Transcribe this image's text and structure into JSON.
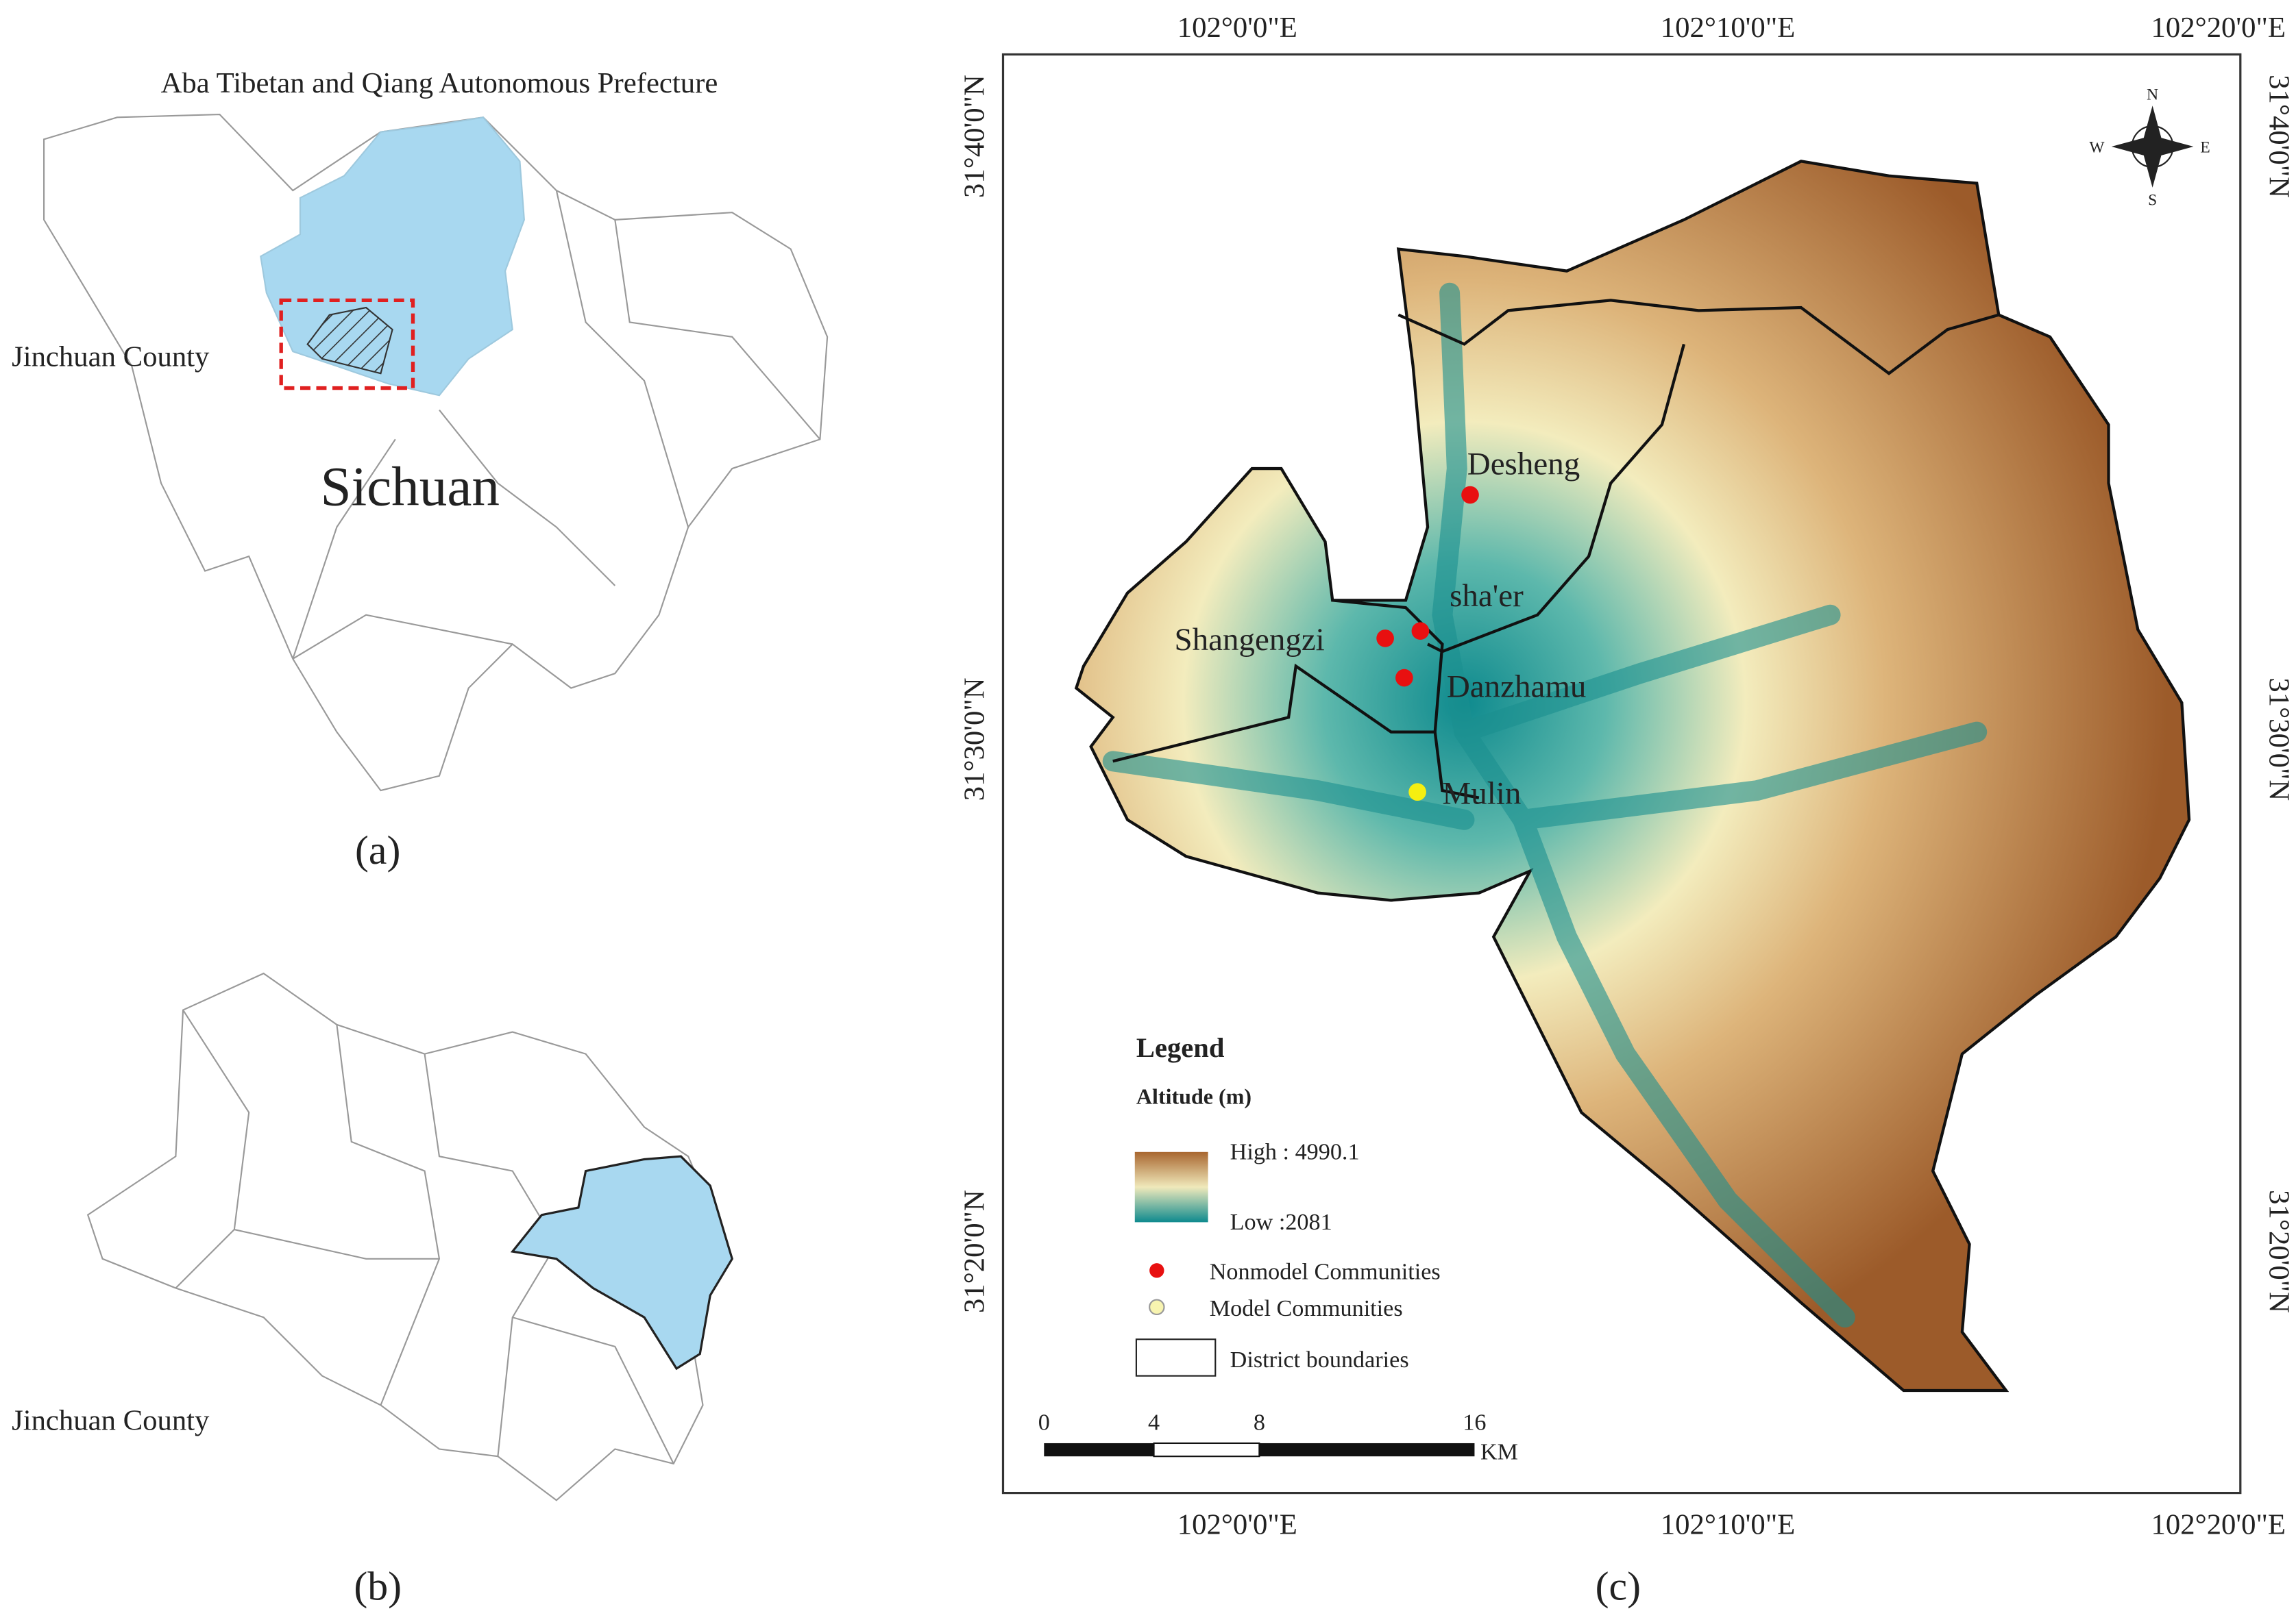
{
  "panel_a": {
    "title": "Aba Tibetan and Qiang Autonomous Prefecture",
    "county_label": "Jinchuan County",
    "province_label": "Sichuan",
    "caption": "(a)"
  },
  "panel_b": {
    "county_label": "Jinchuan County",
    "caption": "(b)"
  },
  "panel_c": {
    "caption": "(c)",
    "top_axis": [
      "102°0'0\"E",
      "102°10'0\"E",
      "102°20'0\"E"
    ],
    "bottom_axis": [
      "102°0'0\"E",
      "102°10'0\"E",
      "102°20'0\"E"
    ],
    "left_axis": [
      "31°40'0\"N",
      "31°30'0\"N",
      "31°20'0\"N"
    ],
    "right_axis": [
      "31°40'0\"N",
      "31°30'0\"N",
      "31°20'0\"N"
    ],
    "compass": [
      "N",
      "S",
      "W",
      "E"
    ],
    "places": [
      "Desheng",
      "sha'er",
      "Shangengzi",
      "Danzhamu",
      "Mulin"
    ],
    "legend": {
      "title": "Legend",
      "subtitle": "Altitude (m)",
      "high": "High : 4990.1",
      "low": "Low :2081",
      "items": [
        "Nonmodel Communities",
        "Model Communities",
        "District boundaries"
      ]
    },
    "scale_bar": {
      "labels": [
        "0",
        "4",
        "8",
        "16"
      ],
      "unit": "KM"
    }
  }
}
